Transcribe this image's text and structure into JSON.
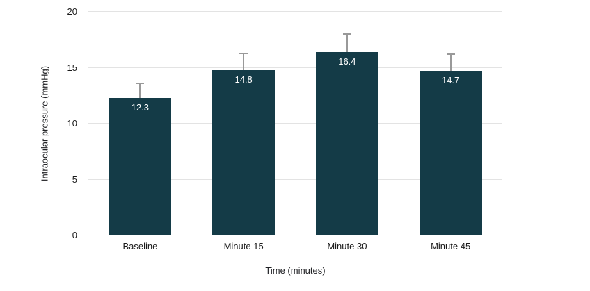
{
  "chart_data": {
    "type": "bar",
    "title": "",
    "categories": [
      "Baseline",
      "Minute 15",
      "Minute 30",
      "Minute 45"
    ],
    "values": [
      12.3,
      14.8,
      16.4,
      14.7
    ],
    "errors_plus": [
      1.3,
      1.5,
      1.6,
      1.5
    ],
    "data_labels": [
      "12.3",
      "14.8",
      "16.4",
      "14.7"
    ],
    "xlabel": "Time (minutes)",
    "ylabel": "Intraocular pressure (mmHg)",
    "ylim": [
      0,
      20
    ],
    "yticks": [
      0,
      5,
      10,
      15,
      20
    ],
    "grid": true,
    "legend": "none",
    "colors": {
      "bar": "#143b47",
      "bar_label": "#ffffff",
      "gridline": "#e3e3e3",
      "axis_line": "#757575",
      "whisker": "#999999",
      "tick_text": "#1a1a1a"
    }
  }
}
